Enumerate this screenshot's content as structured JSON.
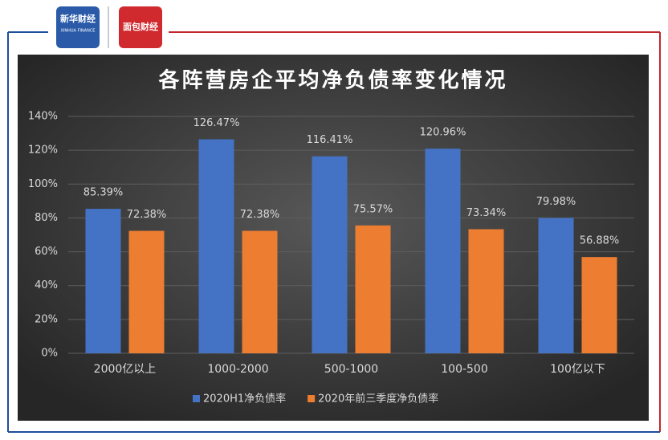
{
  "header": {
    "logo_left": "新华财经",
    "logo_left_sub": "XINHUA FINANCE",
    "logo_right": "面包财经"
  },
  "chart_data": {
    "type": "bar",
    "title": "各阵营房企平均净负债率变化情况",
    "categories": [
      "2000亿以上",
      "1000-2000",
      "500-1000",
      "100-500",
      "100亿以下"
    ],
    "series": [
      {
        "name": "2020H1净负债率",
        "color": "#4472c4",
        "values": [
          85.39,
          126.47,
          116.41,
          120.96,
          79.98
        ],
        "value_labels": [
          "85.39%",
          "126.47%",
          "116.41%",
          "120.96%",
          "79.98%"
        ]
      },
      {
        "name": "2020年前三季度净负债率",
        "color": "#ed7d31",
        "values": [
          72.38,
          72.38,
          75.57,
          73.34,
          56.88
        ],
        "value_labels": [
          "72.38%",
          "72.38%",
          "75.57%",
          "73.34%",
          "56.88%"
        ]
      }
    ],
    "ylim": [
      0,
      140
    ],
    "yticks": [
      {
        "value": 0,
        "label": "0%"
      },
      {
        "value": 20,
        "label": "20%"
      },
      {
        "value": 40,
        "label": "40%"
      },
      {
        "value": 60,
        "label": "60%"
      },
      {
        "value": 80,
        "label": "80%"
      },
      {
        "value": 100,
        "label": "100%"
      },
      {
        "value": 120,
        "label": "120%"
      },
      {
        "value": 140,
        "label": "140%"
      }
    ],
    "grid": true,
    "legend": "bottom"
  }
}
